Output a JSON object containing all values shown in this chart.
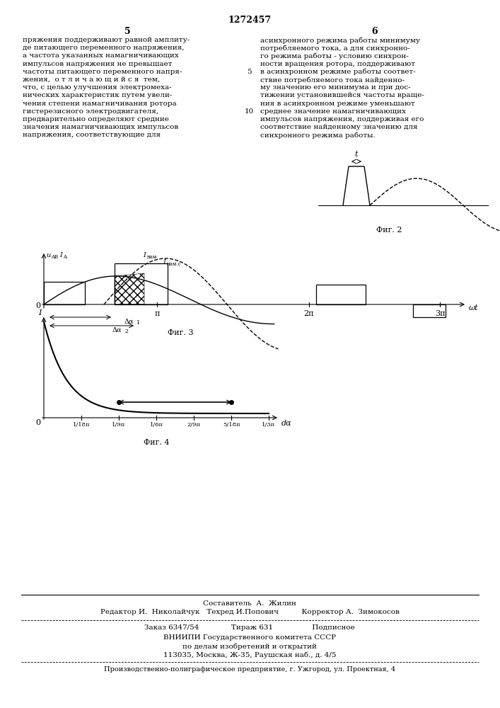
{
  "page_title": "1272457",
  "col_left_num": "5",
  "col_right_num": "6",
  "text_left": [
    "пряжения поддерживают равной амплиту-",
    "де питающего переменного напряжения,",
    "а частота указанных намагничивающих",
    "импульсов напряжения не превышает",
    "частоты питающего переменного напря-",
    "жения,  о т л и ч а ю щ и й с я  тем,",
    "что, с целью улучшения электромеха-",
    "нических характеристик путем увели-",
    "чения степени намагничивания ротора",
    "гистерезисного электродвигателя,",
    "предварительно определяют средние",
    "значения намагничивающих импульсов",
    "напряжения, соответствующие для"
  ],
  "text_right": [
    "асинхронного режима работы минимуму",
    "потребляемого тока, а для синхронно-",
    "го режима работы - условию синхрон-",
    "ности вращения ротора, поддерживают",
    "в асинхронном режиме работы соответ-",
    "ствие потребляемого тока найденно-",
    "му значению его минимума и при дос-",
    "тижении установившейся частоты враще-",
    "ния в асинхронном режиме уменьшают",
    "среднее значение намагничивающих",
    "импульсов напряжения, поддерживая его",
    "соответствие найденному значению для",
    "синхронного режима работы."
  ],
  "footer_line1": "Составитель  А.  Жилин",
  "footer_line2": "Редактор И.  Николайчук   Техред И.Попович          Корректор А.  Зимокосов",
  "footer_line3": "Заказ 6347/54              Тираж 631                 Подписное",
  "footer_line4": "ВНИИПИ Государственного комитета СССР",
  "footer_line5": "по делам изобретений и открытий",
  "footer_line6": "113035, Москва, Ж-35, Раушская наб., д. 4/5",
  "footer_line7": "Производственно-полиграфическое предприятие, г. Ужгород, ул. Проектная, 4",
  "bg_color": "#ffffff"
}
